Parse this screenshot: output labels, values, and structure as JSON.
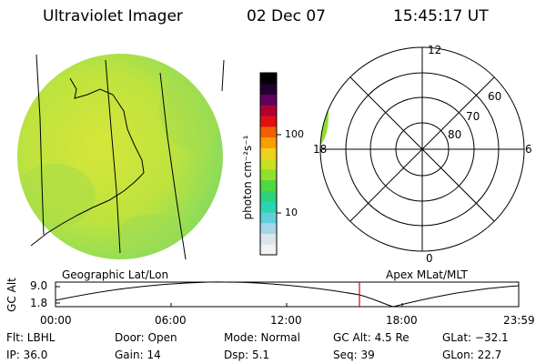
{
  "header": {
    "title": "Ultraviolet Imager",
    "date": "02 Dec 07",
    "time": "15:45:17 UT"
  },
  "colorbar": {
    "unit_label": "photon cm⁻²s⁻¹",
    "tick_labels": [
      "100",
      "10"
    ],
    "colors": [
      "#f2f2f2",
      "#d9e6ee",
      "#a6d6e8",
      "#5fd0d8",
      "#28d6b0",
      "#2ed27a",
      "#4fd840",
      "#8ee02c",
      "#c8e020",
      "#f0d020",
      "#f8a000",
      "#f06000",
      "#e01010",
      "#b00030",
      "#600060",
      "#200030",
      "#000000"
    ]
  },
  "panels": {
    "left_label": "Geographic Lat/Lon",
    "right_label": "Apex MLat/MLT"
  },
  "polar": {
    "mlt_labels": {
      "top": "12",
      "left": "18",
      "right": "6",
      "bottom": "0"
    },
    "lat_labels": [
      "60",
      "70",
      "80"
    ]
  },
  "altitude": {
    "axis_label": "GC Alt",
    "ticks": [
      "9.0",
      "1.8"
    ],
    "time_labels": [
      "00:00",
      "06:00",
      "12:00",
      "18:00",
      "23:59"
    ]
  },
  "info": {
    "flt": "Flt: LBHL",
    "ip": "IP: 36.0",
    "door": "Door: Open",
    "gain": "Gain: 14",
    "mode": "Mode: Normal",
    "dsp": "Dsp:    5.1",
    "gcalt": "GC Alt: 4.5 Re",
    "seq": "Seq: 39",
    "glat": "GLat: −32.1",
    "glon": "GLon:  22.7"
  }
}
